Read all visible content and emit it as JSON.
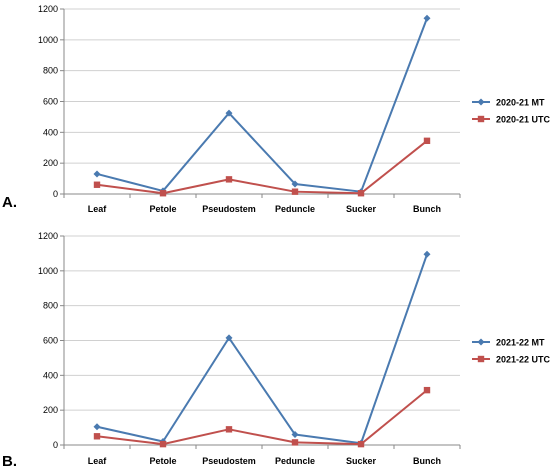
{
  "chart_data": [
    {
      "type": "line",
      "panel_label": "A.",
      "categories": [
        "Leaf",
        "Petole",
        "Pseudostem",
        "Peduncle",
        "Sucker",
        "Bunch"
      ],
      "ylim": [
        0,
        1200
      ],
      "yticks": [
        0,
        200,
        400,
        600,
        800,
        1000,
        1200
      ],
      "grid": true,
      "legend_position": "right",
      "series": [
        {
          "name": "2020-21 MT",
          "color": "#4a7ab0",
          "marker": "diamond",
          "values": [
            130,
            20,
            525,
            65,
            15,
            1140
          ]
        },
        {
          "name": "2020-21 UTC",
          "color": "#c0504d",
          "marker": "square",
          "values": [
            60,
            5,
            95,
            15,
            5,
            345
          ]
        }
      ]
    },
    {
      "type": "line",
      "panel_label": "B.",
      "categories": [
        "Leaf",
        "Petole",
        "Pseudostem",
        "Peduncle",
        "Sucker",
        "Bunch"
      ],
      "ylim": [
        0,
        1200
      ],
      "yticks": [
        0,
        200,
        400,
        600,
        800,
        1000,
        1200
      ],
      "grid": true,
      "legend_position": "right",
      "series": [
        {
          "name": "2021-22 MT",
          "color": "#4a7ab0",
          "marker": "diamond",
          "values": [
            105,
            20,
            615,
            60,
            10,
            1095
          ]
        },
        {
          "name": "2021-22 UTC",
          "color": "#c0504d",
          "marker": "square",
          "values": [
            50,
            5,
            90,
            15,
            5,
            315
          ]
        }
      ]
    }
  ]
}
